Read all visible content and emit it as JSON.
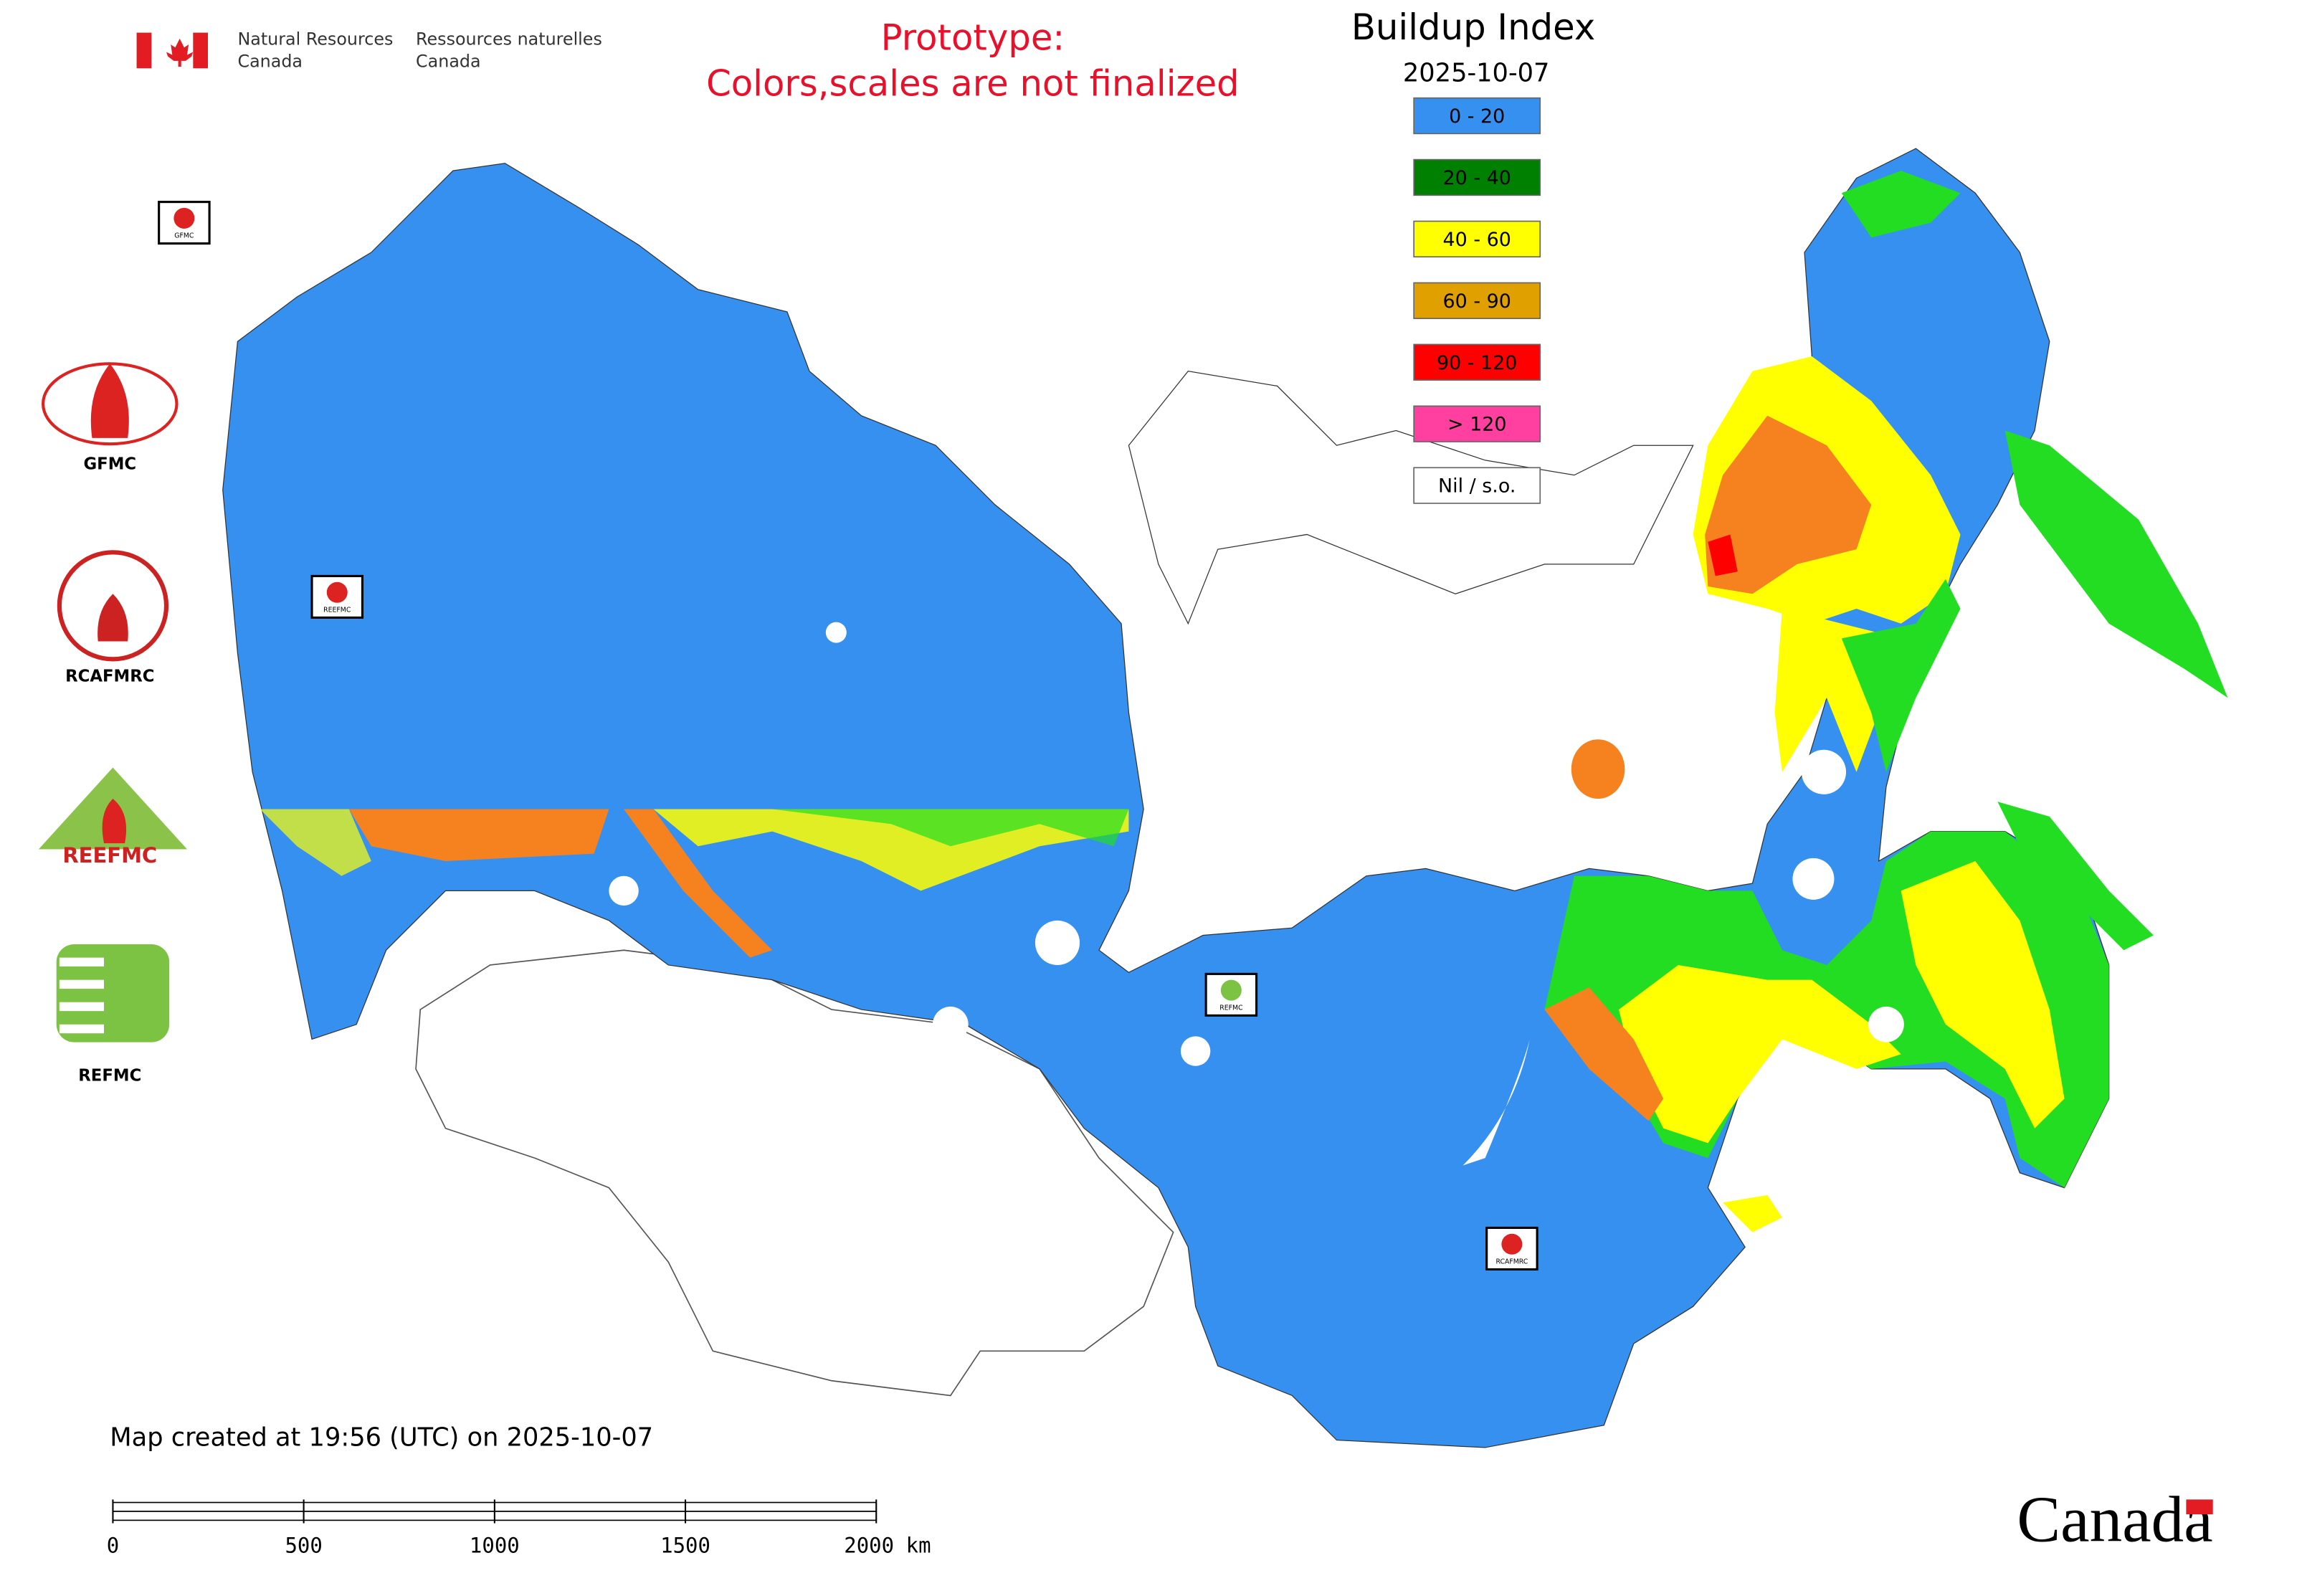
{
  "header": {
    "agency_en": [
      "Natural Resources",
      "Canada"
    ],
    "agency_fr": [
      "Ressources naturelles",
      "Canada"
    ],
    "notice": [
      "Prototype:",
      "Colors,scales are not finalized"
    ]
  },
  "legend": {
    "title": "Buildup Index",
    "date": "2025-10-07",
    "items": [
      {
        "label": "0 - 20",
        "color": "#3590f0"
      },
      {
        "label": "20 - 40",
        "color": "#008000"
      },
      {
        "label": "40 - 60",
        "color": "#ffff00"
      },
      {
        "label": "60 - 90",
        "color": "#e0a000"
      },
      {
        "label": "90 - 120",
        "color": "#ff0000"
      },
      {
        "label": "> 120",
        "color": "#ff40a0"
      },
      {
        "label": "Nil / s.o.",
        "color": "#ffffff"
      }
    ]
  },
  "logos": [
    "GFMC",
    "RCAFMRC",
    "REEFMC",
    "REFMC"
  ],
  "map_markers": [
    "GFMC",
    "REEFMC",
    "REFMC",
    "RCAFMRC"
  ],
  "footer": {
    "created": "Map created at 19:56 (UTC) on 2025-10-07",
    "wordmark": "Canada"
  },
  "scale_bar": {
    "ticks": [
      0,
      500,
      1000,
      1500,
      2000
    ],
    "unit": "km"
  }
}
